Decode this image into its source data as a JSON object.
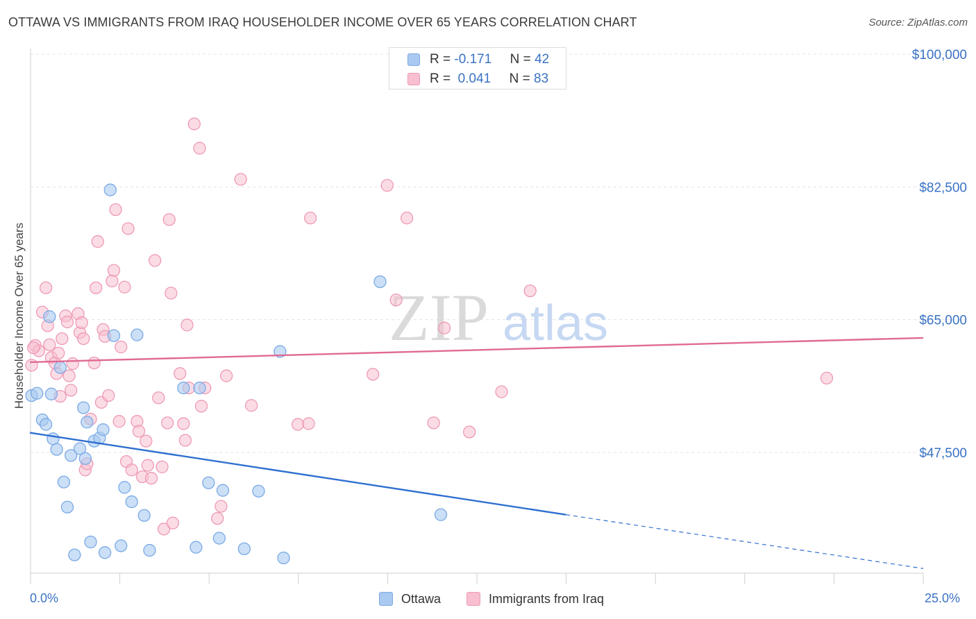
{
  "title": "OTTAWA VS IMMIGRANTS FROM IRAQ HOUSEHOLDER INCOME OVER 65 YEARS CORRELATION CHART",
  "source": "Source: ZipAtlas.com",
  "watermark": {
    "zip": "ZIP",
    "atlas": "atlas"
  },
  "legend_top": {
    "rows": [
      {
        "r_label": "R =",
        "r_value": "-0.171",
        "n_label": "N =",
        "n_value": "42"
      },
      {
        "r_label": "R =",
        "r_value": "0.041",
        "n_label": "N =",
        "n_value": "83"
      }
    ]
  },
  "legend_bottom": {
    "series1": "Ottawa",
    "series2": "Immigrants from Iraq"
  },
  "colors": {
    "ottawa_fill": "#a9c9f0",
    "ottawa_stroke": "#7aaae6",
    "ottawa_line": "#2f6fd0",
    "iraq_fill": "#f7bfd0",
    "iraq_stroke": "#ee9ab5",
    "iraq_line": "#e06a93",
    "axis_label": "#3a72c4",
    "grid": "#e3e3e3"
  },
  "chart_data": {
    "type": "scatter",
    "title": "OTTAWA VS IMMIGRANTS FROM IRAQ HOUSEHOLDER INCOME OVER 65 YEARS CORRELATION CHART",
    "xlabel": "",
    "ylabel": "Householder Income Over 65 years",
    "xlim": [
      0,
      25
    ],
    "ylim": [
      32000,
      102000
    ],
    "x_tick_labels": [
      "0.0%",
      "25.0%"
    ],
    "y_ticks": [
      {
        "value": 47500,
        "label": "$47,500"
      },
      {
        "value": 65000,
        "label": "$65,000"
      },
      {
        "value": 82500,
        "label": "$82,500"
      },
      {
        "value": 100000,
        "label": "$100,000"
      }
    ],
    "series": [
      {
        "name": "Ottawa",
        "points": [
          [
            0.05,
            55.0
          ],
          [
            0.2,
            55.3
          ],
          [
            0.35,
            51.8
          ],
          [
            0.45,
            51.2
          ],
          [
            0.55,
            65.4
          ],
          [
            0.65,
            49.3
          ],
          [
            0.75,
            47.9
          ],
          [
            0.85,
            58.7
          ],
          [
            0.95,
            43.6
          ],
          [
            1.05,
            40.3
          ],
          [
            1.15,
            47.1
          ],
          [
            1.25,
            34.0
          ],
          [
            1.4,
            48.0
          ],
          [
            1.5,
            53.4
          ],
          [
            1.55,
            46.7
          ],
          [
            1.6,
            51.5
          ],
          [
            1.7,
            35.7
          ],
          [
            1.8,
            49.0
          ],
          [
            1.95,
            49.4
          ],
          [
            2.05,
            50.5
          ],
          [
            2.1,
            34.3
          ],
          [
            2.25,
            82.1
          ],
          [
            2.35,
            62.9
          ],
          [
            2.55,
            35.2
          ],
          [
            2.65,
            42.9
          ],
          [
            2.85,
            41.0
          ],
          [
            3.0,
            63.0
          ],
          [
            3.2,
            39.2
          ],
          [
            3.35,
            34.6
          ],
          [
            4.65,
            35.0
          ],
          [
            4.75,
            56.0
          ],
          [
            5.0,
            43.5
          ],
          [
            5.3,
            36.2
          ],
          [
            5.4,
            42.5
          ],
          [
            6.0,
            34.8
          ],
          [
            6.4,
            42.4
          ],
          [
            7.0,
            60.8
          ],
          [
            7.1,
            33.6
          ],
          [
            9.8,
            70.0
          ],
          [
            11.5,
            39.3
          ],
          [
            4.3,
            56.0
          ],
          [
            0.6,
            55.2
          ]
        ]
      },
      {
        "name": "Immigrants from Iraq",
        "points": [
          [
            0.05,
            59.0
          ],
          [
            0.15,
            61.6
          ],
          [
            0.25,
            60.9
          ],
          [
            0.35,
            66.0
          ],
          [
            0.45,
            69.2
          ],
          [
            0.5,
            64.2
          ],
          [
            0.6,
            60.0
          ],
          [
            0.7,
            59.3
          ],
          [
            0.75,
            57.9
          ],
          [
            0.8,
            60.6
          ],
          [
            0.9,
            62.5
          ],
          [
            1.0,
            65.5
          ],
          [
            1.05,
            64.7
          ],
          [
            1.1,
            57.6
          ],
          [
            1.15,
            55.7
          ],
          [
            1.2,
            59.2
          ],
          [
            1.35,
            65.8
          ],
          [
            1.4,
            63.3
          ],
          [
            1.45,
            64.6
          ],
          [
            1.5,
            62.5
          ],
          [
            1.55,
            45.2
          ],
          [
            1.6,
            46.0
          ],
          [
            1.7,
            51.9
          ],
          [
            1.8,
            59.3
          ],
          [
            1.85,
            69.2
          ],
          [
            1.9,
            75.3
          ],
          [
            2.0,
            54.1
          ],
          [
            2.05,
            63.7
          ],
          [
            2.1,
            62.8
          ],
          [
            2.2,
            55.0
          ],
          [
            2.3,
            70.1
          ],
          [
            2.35,
            71.5
          ],
          [
            2.4,
            79.5
          ],
          [
            2.5,
            51.6
          ],
          [
            2.55,
            61.4
          ],
          [
            2.65,
            69.3
          ],
          [
            2.7,
            46.3
          ],
          [
            2.75,
            77.0
          ],
          [
            2.85,
            45.2
          ],
          [
            3.0,
            51.6
          ],
          [
            3.05,
            50.3
          ],
          [
            3.15,
            44.3
          ],
          [
            3.25,
            49.0
          ],
          [
            3.3,
            45.8
          ],
          [
            3.4,
            44.1
          ],
          [
            3.5,
            72.8
          ],
          [
            3.6,
            54.7
          ],
          [
            3.7,
            45.6
          ],
          [
            3.75,
            37.4
          ],
          [
            3.85,
            51.4
          ],
          [
            3.9,
            78.2
          ],
          [
            3.95,
            68.5
          ],
          [
            4.0,
            38.2
          ],
          [
            4.2,
            57.9
          ],
          [
            4.3,
            51.3
          ],
          [
            4.35,
            49.1
          ],
          [
            4.4,
            64.3
          ],
          [
            4.45,
            56.0
          ],
          [
            4.6,
            90.8
          ],
          [
            4.75,
            87.6
          ],
          [
            4.8,
            53.6
          ],
          [
            4.9,
            56.0
          ],
          [
            5.25,
            38.8
          ],
          [
            5.35,
            40.4
          ],
          [
            5.5,
            57.6
          ],
          [
            5.9,
            83.5
          ],
          [
            6.2,
            53.7
          ],
          [
            7.5,
            51.2
          ],
          [
            7.8,
            51.3
          ],
          [
            7.85,
            78.4
          ],
          [
            9.6,
            57.8
          ],
          [
            10.0,
            82.7
          ],
          [
            10.25,
            67.6
          ],
          [
            10.55,
            78.4
          ],
          [
            11.3,
            51.4
          ],
          [
            11.6,
            63.9
          ],
          [
            12.3,
            50.2
          ],
          [
            13.2,
            55.5
          ],
          [
            14.0,
            68.8
          ],
          [
            22.3,
            57.3
          ],
          [
            0.1,
            61.3
          ],
          [
            0.55,
            61.7
          ],
          [
            0.85,
            54.9
          ]
        ]
      }
    ],
    "trendlines": [
      {
        "series": "Ottawa",
        "x": [
          0,
          15
        ],
        "y": [
          50100,
          39300
        ],
        "dashed_extension_x": [
          15,
          25
        ],
        "dashed_extension_y": [
          39300,
          32200
        ]
      },
      {
        "series": "Immigrants from Iraq",
        "x": [
          0,
          25
        ],
        "y": [
          59400,
          62600
        ]
      }
    ]
  }
}
